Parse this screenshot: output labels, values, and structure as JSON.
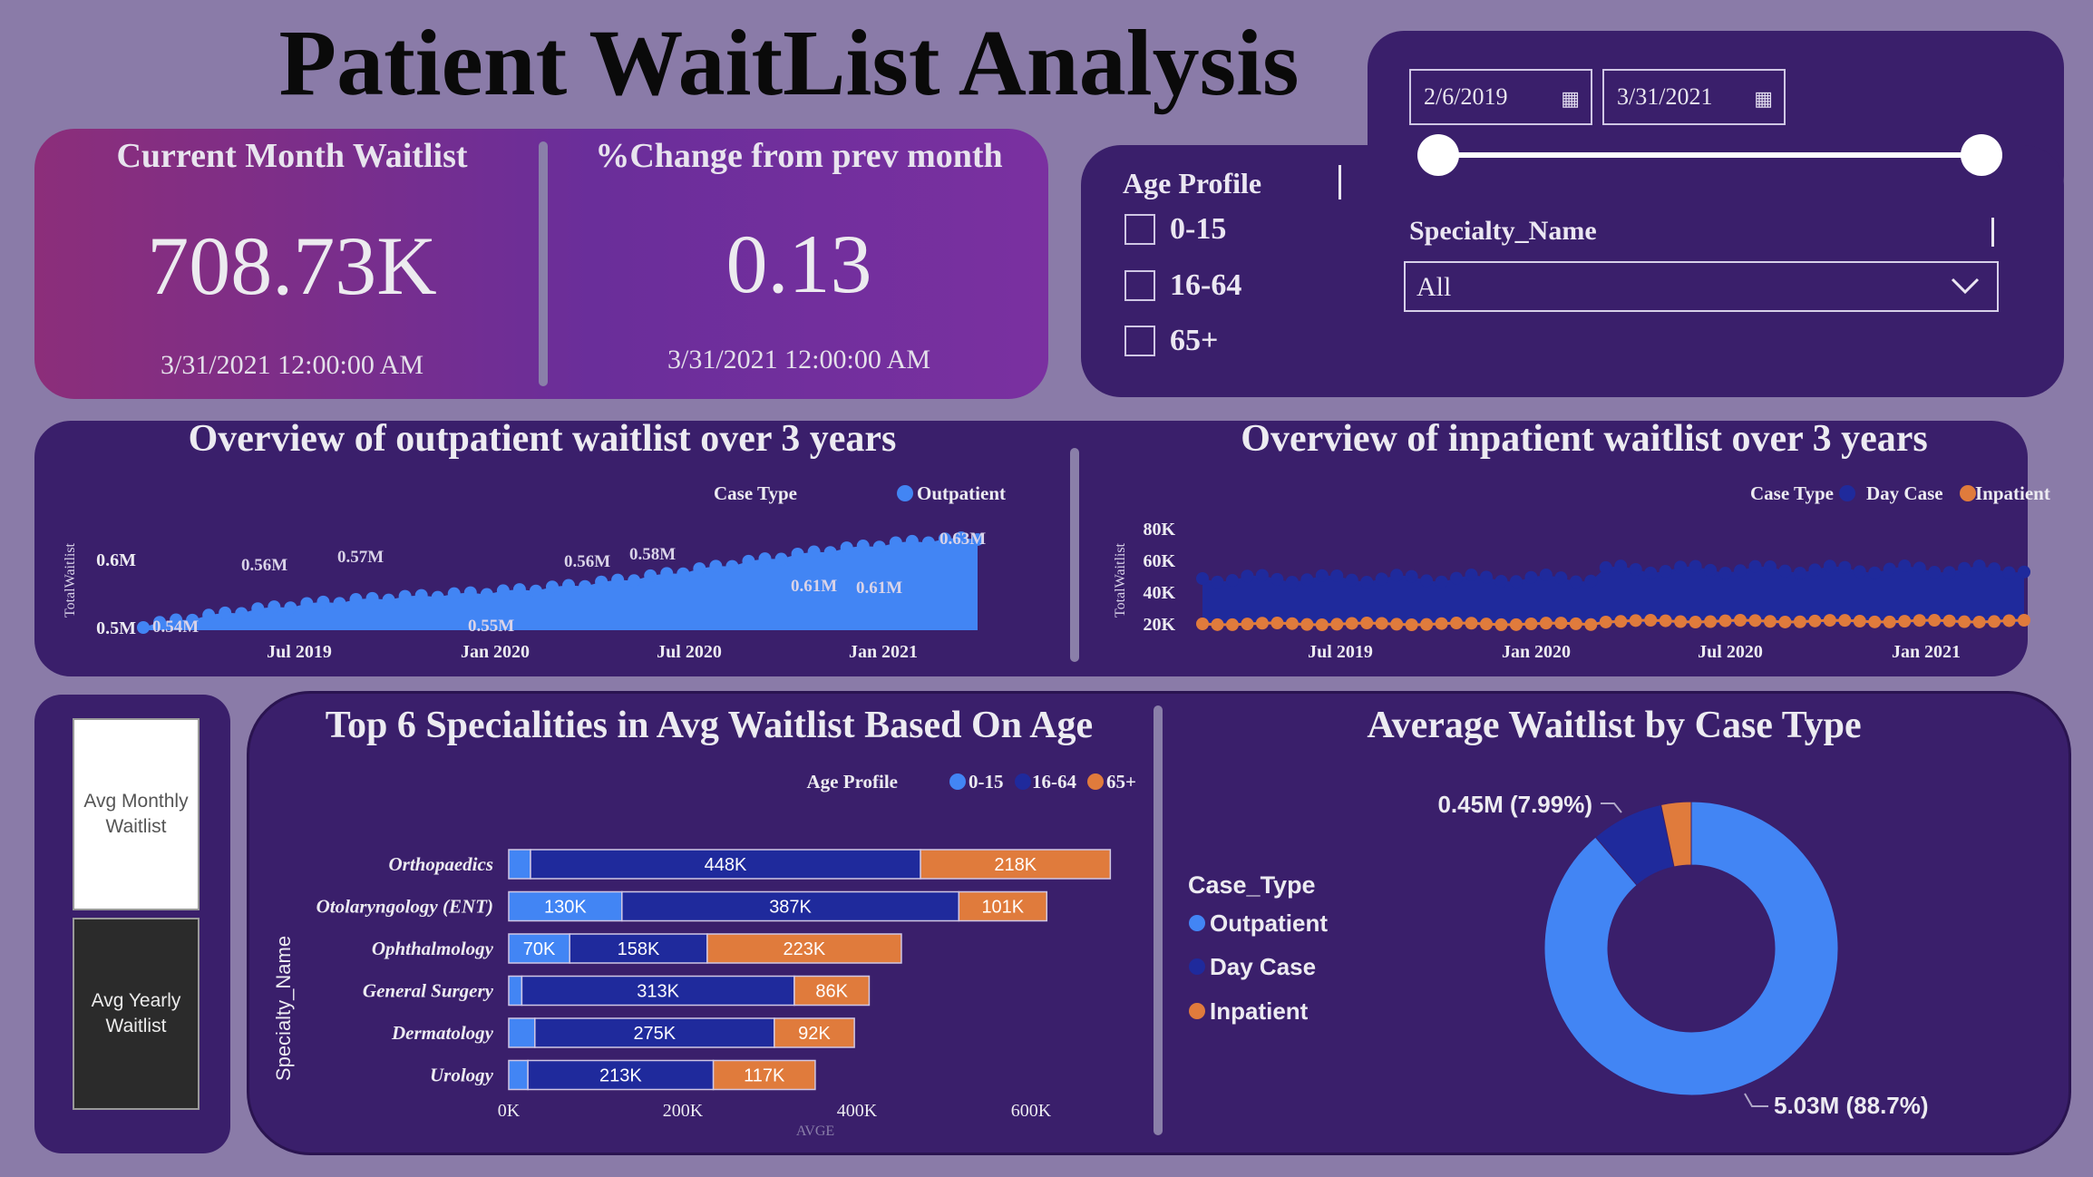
{
  "title": "Patient WaitList Analysis",
  "kpis": {
    "current_label": "Current Month Waitlist",
    "current_value": "708.73K",
    "current_date": "3/31/2021 12:00:00 AM",
    "change_label": "%Change from prev month",
    "change_value": "0.13",
    "change_date": "3/31/2021 12:00:00 AM"
  },
  "filters": {
    "date_start": "2/6/2019",
    "date_end": "3/31/2021",
    "age_profile_label": "Age Profile",
    "age_options": [
      "0-15",
      "16-64",
      "65+"
    ],
    "specialty_label": "Specialty_Name",
    "specialty_value": "All"
  },
  "colors": {
    "outpatient": "#4285f4",
    "day_case": "#1f2a9c",
    "inpatient": "#e07b3c",
    "panel": "#3a1f6b",
    "background": "#8a7ba8"
  },
  "toggle": {
    "monthly_label": "Avg Monthly Waitlist",
    "yearly_label": "Avg Yearly Waitlist"
  },
  "chart_data": [
    {
      "type": "area",
      "title": "Overview of outpatient waitlist over 3 years",
      "legend_title": "Case Type",
      "series": [
        {
          "name": "Outpatient"
        }
      ],
      "ylabel": "TotalWaitlist",
      "y_ticks": [
        "0.5M",
        "0.6M"
      ],
      "x_ticks": [
        "Jul 2019",
        "Jan 2020",
        "Jul 2020",
        "Jan 2021"
      ],
      "data_labels": [
        "0.54M",
        "0.56M",
        "0.57M",
        "0.55M",
        "0.56M",
        "0.58M",
        "0.61M",
        "0.61M",
        "0.63M"
      ],
      "ylim": [
        0.5,
        0.65
      ]
    },
    {
      "type": "line",
      "title": "Overview of inpatient waitlist over 3 years",
      "legend_title": "Case Type",
      "series": [
        {
          "name": "Day Case"
        },
        {
          "name": "Inpatient"
        }
      ],
      "ylabel": "TotalWaitlist",
      "y_ticks": [
        "20K",
        "40K",
        "60K",
        "80K"
      ],
      "x_ticks": [
        "Jul 2019",
        "Jan 2020",
        "Jul 2020",
        "Jan 2021"
      ],
      "ylim": [
        20000,
        80000
      ]
    },
    {
      "type": "bar",
      "title": "Top 6 Specialities in Avg Waitlist Based On Age",
      "legend_title": "Age Profile",
      "ylabel": "Specialty_Name",
      "xlabel": "AVGE",
      "categories": [
        "Orthopaedics",
        "Otolaryngology (ENT)",
        "Ophthalmology",
        "General Surgery",
        "Dermatology",
        "Urology"
      ],
      "series": [
        {
          "name": "0-15",
          "values": [
            25,
            130,
            70,
            15,
            30,
            22
          ],
          "labels": [
            "",
            "130K",
            "70K",
            "",
            "",
            ""
          ]
        },
        {
          "name": "16-64",
          "values": [
            448,
            387,
            158,
            313,
            275,
            213
          ],
          "labels": [
            "448K",
            "387K",
            "158K",
            "313K",
            "275K",
            "213K"
          ]
        },
        {
          "name": "65+",
          "values": [
            218,
            101,
            223,
            86,
            92,
            117
          ],
          "labels": [
            "218K",
            "101K",
            "223K",
            "86K",
            "92K",
            "117K"
          ]
        }
      ],
      "x_ticks": [
        "0K",
        "200K",
        "400K",
        "600K"
      ],
      "xlim": [
        0,
        700
      ]
    },
    {
      "type": "pie",
      "title": "Average Waitlist by Case Type",
      "legend_title": "Case_Type",
      "series": [
        {
          "name": "Outpatient",
          "value": 88.7,
          "label": "5.03M (88.7%)"
        },
        {
          "name": "Day Case",
          "value": 7.99,
          "label": "0.45M (7.99%)"
        },
        {
          "name": "Inpatient",
          "value": 3.31,
          "label": ""
        }
      ]
    }
  ]
}
